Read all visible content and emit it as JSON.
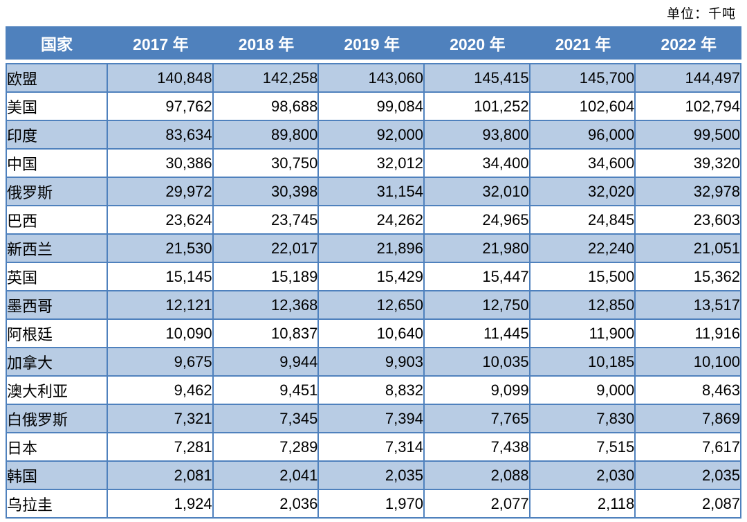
{
  "unit_label": "单位：千吨",
  "colors": {
    "header_bg": "#4F81BD",
    "header_text": "#FFFFFF",
    "alt_row_bg": "#B8CCE4",
    "border": "#4F81BD",
    "body_text": "#000000"
  },
  "chart_data": {
    "type": "table",
    "title": "",
    "unit": "千吨",
    "columns": [
      "国家",
      "2017 年",
      "2018 年",
      "2019 年",
      "2020 年",
      "2021 年",
      "2022 年"
    ],
    "rows": [
      {
        "country": "欧盟",
        "values": [
          "140,848",
          "142,258",
          "143,060",
          "145,415",
          "145,700",
          "144,497"
        ]
      },
      {
        "country": "美国",
        "values": [
          "97,762",
          "98,688",
          "99,084",
          "101,252",
          "102,604",
          "102,794"
        ]
      },
      {
        "country": "印度",
        "values": [
          "83,634",
          "89,800",
          "92,000",
          "93,800",
          "96,000",
          "99,500"
        ]
      },
      {
        "country": "中国",
        "values": [
          "30,386",
          "30,750",
          "32,012",
          "34,400",
          "34,600",
          "39,320"
        ]
      },
      {
        "country": "俄罗斯",
        "values": [
          "29,972",
          "30,398",
          "31,154",
          "32,010",
          "32,020",
          "32,978"
        ]
      },
      {
        "country": "巴西",
        "values": [
          "23,624",
          "23,745",
          "24,262",
          "24,965",
          "24,845",
          "23,603"
        ]
      },
      {
        "country": "新西兰",
        "values": [
          "21,530",
          "22,017",
          "21,896",
          "21,980",
          "22,240",
          "21,051"
        ]
      },
      {
        "country": "英国",
        "values": [
          "15,145",
          "15,189",
          "15,429",
          "15,447",
          "15,500",
          "15,362"
        ]
      },
      {
        "country": "墨西哥",
        "values": [
          "12,121",
          "12,368",
          "12,650",
          "12,750",
          "12,850",
          "13,517"
        ]
      },
      {
        "country": "阿根廷",
        "values": [
          "10,090",
          "10,837",
          "10,640",
          "11,445",
          "11,900",
          "11,916"
        ]
      },
      {
        "country": "加拿大",
        "values": [
          "9,675",
          "9,944",
          "9,903",
          "10,035",
          "10,185",
          "10,100"
        ]
      },
      {
        "country": "澳大利亚",
        "values": [
          "9,462",
          "9,451",
          "8,832",
          "9,099",
          "9,000",
          "8,463"
        ]
      },
      {
        "country": "白俄罗斯",
        "values": [
          "7,321",
          "7,345",
          "7,394",
          "7,765",
          "7,830",
          "7,869"
        ]
      },
      {
        "country": "日本",
        "values": [
          "7,281",
          "7,289",
          "7,314",
          "7,438",
          "7,515",
          "7,617"
        ]
      },
      {
        "country": "韩国",
        "values": [
          "2,081",
          "2,041",
          "2,035",
          "2,088",
          "2,030",
          "2,035"
        ]
      },
      {
        "country": "乌拉圭",
        "values": [
          "1,924",
          "2,036",
          "1,970",
          "2,077",
          "2,118",
          "2,087"
        ]
      }
    ]
  }
}
